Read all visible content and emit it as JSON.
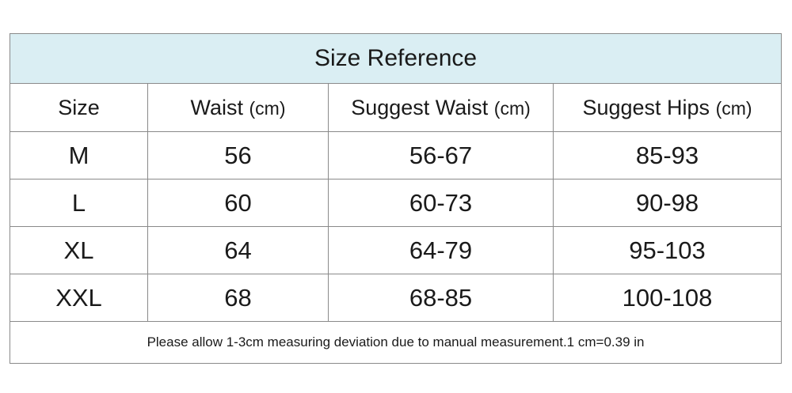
{
  "title": "Size Reference",
  "headers": [
    {
      "label": "Size",
      "unit": ""
    },
    {
      "label": "Waist",
      "unit": "(cm)"
    },
    {
      "label": "Suggest Waist",
      "unit": "(cm)"
    },
    {
      "label": "Suggest Hips",
      "unit": "(cm)"
    }
  ],
  "rows": [
    [
      "M",
      "56",
      "56-67",
      "85-93"
    ],
    [
      "L",
      "60",
      "60-73",
      "90-98"
    ],
    [
      "XL",
      "64",
      "64-79",
      "95-103"
    ],
    [
      "XXL",
      "68",
      "68-85",
      "100-108"
    ]
  ],
  "note": "Please allow 1-3cm measuring deviation due to manual measurement.1 cm=0.39 in",
  "colors": {
    "title_background": "#daeef3",
    "border": "#8a8a8a",
    "text": "#1a1a1a"
  }
}
